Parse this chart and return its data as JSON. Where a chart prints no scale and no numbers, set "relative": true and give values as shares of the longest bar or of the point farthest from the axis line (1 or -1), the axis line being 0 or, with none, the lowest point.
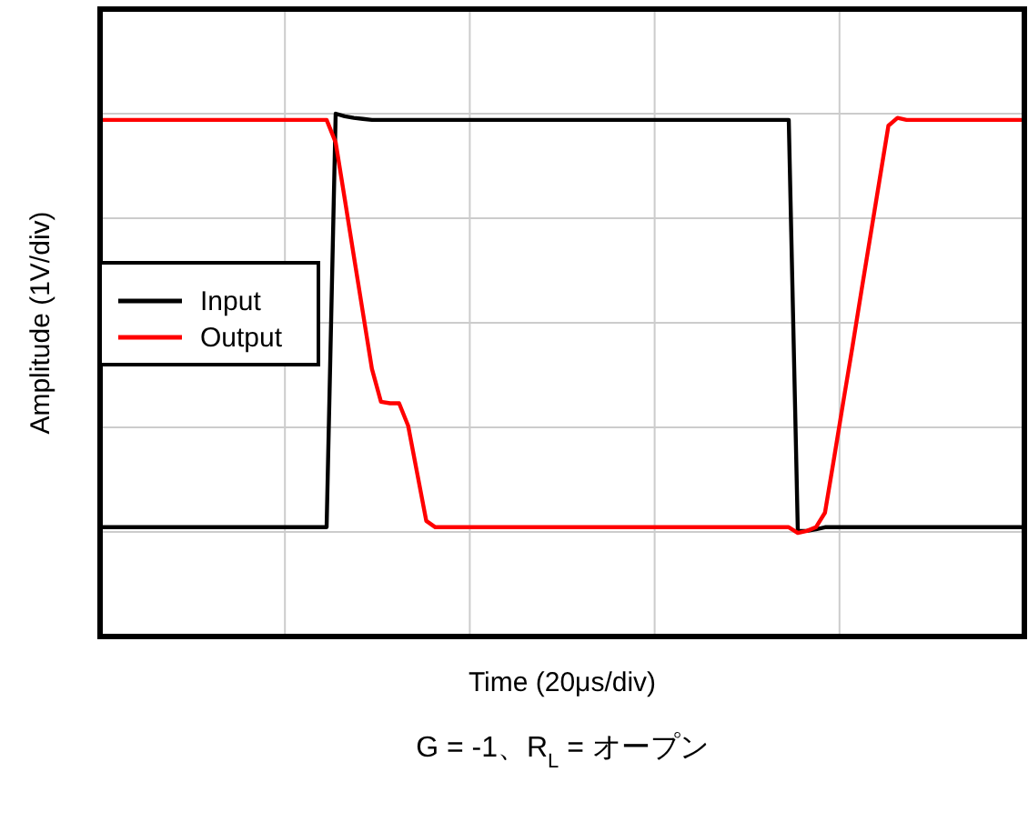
{
  "chart_data": {
    "type": "line",
    "relative": true,
    "xlabel": "Time (20μs/div)",
    "ylabel": "Amplitude (1V/div)",
    "grid": true,
    "legend": "left",
    "annotations": [
      "G = -1、R$_{L}$ = オープン"
    ],
    "categories": [
      null,
      null,
      null,
      null,
      null,
      null,
      null,
      null,
      null,
      null,
      null,
      null,
      null,
      null,
      null,
      null,
      null,
      null,
      null,
      null,
      null,
      null,
      null,
      null,
      null,
      null,
      null,
      null,
      null,
      null,
      null,
      null,
      null,
      null,
      null,
      null,
      null,
      null,
      null,
      null,
      null,
      null,
      null,
      null,
      null,
      null,
      null,
      null,
      null,
      null,
      null,
      null,
      null,
      null,
      null,
      null,
      null,
      null,
      null,
      null,
      null,
      null,
      null,
      null,
      null,
      null,
      null,
      null,
      null,
      null,
      null,
      null,
      null,
      null,
      null,
      null,
      null,
      null,
      null,
      null,
      null,
      null,
      null,
      null,
      null,
      null,
      null,
      null,
      null,
      null,
      null,
      null,
      null,
      null,
      null,
      null,
      null,
      null,
      null,
      null,
      null,
      null,
      null
    ],
    "series": [
      {
        "name": "Input",
        "color": "#000000",
        "values": [
          0.209,
          0.209,
          0.209,
          0.209,
          0.209,
          0.209,
          0.209,
          0.209,
          0.209,
          0.209,
          0.209,
          0.209,
          0.209,
          0.209,
          0.209,
          0.209,
          0.209,
          0.209,
          0.209,
          0.209,
          0.209,
          0.209,
          0.209,
          0.209,
          0.209,
          0.209,
          1.0,
          0.995,
          0.992,
          0.99,
          0.988,
          0.988,
          0.988,
          0.988,
          0.988,
          0.988,
          0.988,
          0.988,
          0.988,
          0.988,
          0.988,
          0.988,
          0.988,
          0.988,
          0.988,
          0.988,
          0.988,
          0.988,
          0.988,
          0.988,
          0.988,
          0.988,
          0.988,
          0.988,
          0.988,
          0.988,
          0.988,
          0.988,
          0.988,
          0.988,
          0.988,
          0.988,
          0.988,
          0.988,
          0.988,
          0.988,
          0.988,
          0.988,
          0.988,
          0.988,
          0.988,
          0.988,
          0.988,
          0.988,
          0.988,
          0.988,
          0.988,
          0.202,
          0.202,
          0.205,
          0.209,
          0.209,
          0.209,
          0.209,
          0.209,
          0.209,
          0.209,
          0.209,
          0.209,
          0.209,
          0.209,
          0.209,
          0.209,
          0.209,
          0.209,
          0.209,
          0.209,
          0.209,
          0.209,
          0.209,
          0.209,
          0.209,
          0.209
        ]
      },
      {
        "name": "Output",
        "color": "#ff0000",
        "values": [
          0.988,
          0.988,
          0.988,
          0.988,
          0.988,
          0.988,
          0.988,
          0.988,
          0.988,
          0.988,
          0.988,
          0.988,
          0.988,
          0.988,
          0.988,
          0.988,
          0.988,
          0.988,
          0.988,
          0.988,
          0.988,
          0.988,
          0.988,
          0.988,
          0.988,
          0.988,
          0.945,
          0.837,
          0.728,
          0.62,
          0.512,
          0.449,
          0.446,
          0.446,
          0.403,
          0.312,
          0.221,
          0.209,
          0.209,
          0.209,
          0.209,
          0.209,
          0.209,
          0.209,
          0.209,
          0.209,
          0.209,
          0.209,
          0.209,
          0.209,
          0.209,
          0.209,
          0.209,
          0.209,
          0.209,
          0.209,
          0.209,
          0.209,
          0.209,
          0.209,
          0.209,
          0.209,
          0.209,
          0.209,
          0.209,
          0.209,
          0.209,
          0.209,
          0.209,
          0.209,
          0.209,
          0.209,
          0.209,
          0.209,
          0.209,
          0.209,
          0.209,
          0.198,
          0.202,
          0.209,
          0.237,
          0.341,
          0.447,
          0.551,
          0.659,
          0.765,
          0.871,
          0.977,
          0.992,
          0.988,
          0.988,
          0.988,
          0.988,
          0.988,
          0.988,
          0.988,
          0.988,
          0.988,
          0.988,
          0.988,
          0.988,
          0.988,
          0.988
        ]
      }
    ]
  }
}
